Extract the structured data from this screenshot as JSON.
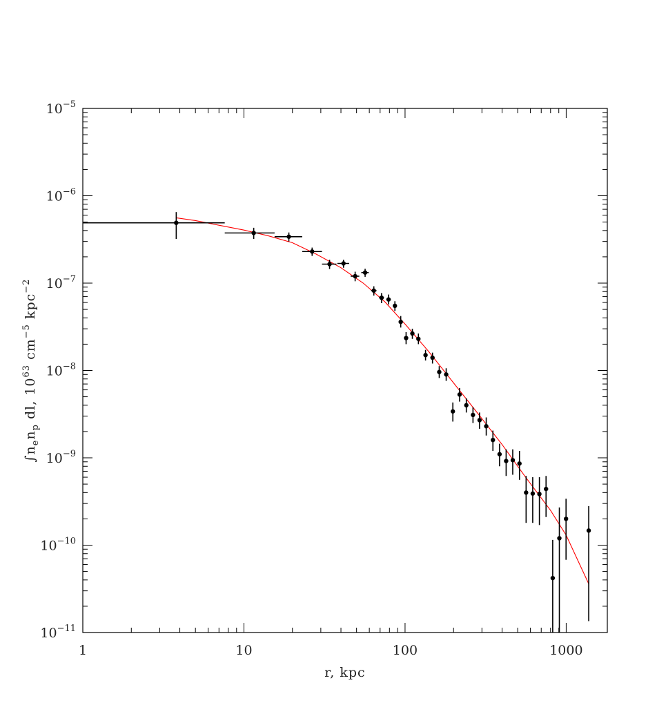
{
  "chart_data": {
    "type": "scatter",
    "title": "",
    "xlabel": "r, kpc",
    "ylabel": {
      "prefix": "∫n",
      "sub1": "e",
      "mid": "n",
      "sub2": "p",
      "rest1": " dl, 10",
      "exp1": "63",
      "rest2": " cm",
      "exp2": "−5",
      "rest3": " kpc",
      "exp3": "−2"
    },
    "x_scale": "log",
    "y_scale": "log",
    "xlim": [
      1,
      1800
    ],
    "ylim": [
      1e-11,
      1e-05
    ],
    "x_ticks": [
      {
        "value": 1,
        "label": "1"
      },
      {
        "value": 10,
        "label": "10"
      },
      {
        "value": 100,
        "label": "100"
      },
      {
        "value": 1000,
        "label": "1000"
      }
    ],
    "y_ticks": [
      {
        "value": 1e-05,
        "base": "10",
        "exp": "−5"
      },
      {
        "value": 1e-06,
        "base": "10",
        "exp": "−6"
      },
      {
        "value": 1e-07,
        "base": "10",
        "exp": "−7"
      },
      {
        "value": 1e-08,
        "base": "10",
        "exp": "−8"
      },
      {
        "value": 1e-09,
        "base": "10",
        "exp": "−9"
      },
      {
        "value": 1e-10,
        "base": "10",
        "exp": "−10"
      },
      {
        "value": 1e-11,
        "base": "10",
        "exp": "−11"
      }
    ],
    "grid": false,
    "series": [
      {
        "kind": "data-points",
        "color": "#000000",
        "points": [
          {
            "x": 3.8,
            "xlo": 1.0,
            "xhi": 7.6,
            "y": 4.9e-07,
            "ylo": 3.2e-07,
            "yhi": 6.5e-07
          },
          {
            "x": 11.5,
            "xlo": 7.6,
            "xhi": 15.5,
            "y": 3.75e-07,
            "ylo": 3.2e-07,
            "yhi": 4.3e-07
          },
          {
            "x": 19.0,
            "xlo": 15.5,
            "xhi": 23.0,
            "y": 3.4e-07,
            "ylo": 3e-07,
            "yhi": 3.8e-07
          },
          {
            "x": 26.5,
            "xlo": 23.0,
            "xhi": 30.5,
            "y": 2.3e-07,
            "ylo": 2.05e-07,
            "yhi": 2.55e-07
          },
          {
            "x": 34.0,
            "xlo": 30.5,
            "xhi": 37.5,
            "y": 1.65e-07,
            "ylo": 1.45e-07,
            "yhi": 1.85e-07
          },
          {
            "x": 41.5,
            "xlo": 38.0,
            "xhi": 45.0,
            "y": 1.68e-07,
            "ylo": 1.5e-07,
            "yhi": 1.85e-07
          },
          {
            "x": 49.0,
            "xlo": 46.0,
            "xhi": 52.0,
            "y": 1.2e-07,
            "ylo": 1.05e-07,
            "yhi": 1.35e-07
          },
          {
            "x": 56.5,
            "xlo": 53.5,
            "xhi": 59.5,
            "y": 1.32e-07,
            "ylo": 1.18e-07,
            "yhi": 1.46e-07
          },
          {
            "x": 64.0,
            "xlo": 61.5,
            "xhi": 66.5,
            "y": 8.2e-08,
            "ylo": 7.2e-08,
            "yhi": 9.2e-08
          },
          {
            "x": 71.5,
            "xlo": 69.0,
            "xhi": 74.0,
            "y": 6.8e-08,
            "ylo": 5.9e-08,
            "yhi": 7.7e-08
          },
          {
            "x": 79.0,
            "xlo": 76.5,
            "xhi": 81.5,
            "y": 6.5e-08,
            "ylo": 5.7e-08,
            "yhi": 7.4e-08
          },
          {
            "x": 86.5,
            "xlo": 84.5,
            "xhi": 88.5,
            "y": 5.5e-08,
            "ylo": 4.8e-08,
            "yhi": 6.2e-08
          },
          {
            "x": 94.0,
            "xlo": 92.0,
            "xhi": 96.0,
            "y": 3.6e-08,
            "ylo": 3.1e-08,
            "yhi": 4.2e-08
          },
          {
            "x": 101.5,
            "xlo": 99.5,
            "xhi": 103.5,
            "y": 2.35e-08,
            "ylo": 2e-08,
            "yhi": 2.75e-08
          },
          {
            "x": 111.0,
            "xlo": 108.5,
            "xhi": 113.5,
            "y": 2.65e-08,
            "ylo": 2.3e-08,
            "yhi": 3e-08
          },
          {
            "x": 121.0,
            "xlo": 118.5,
            "xhi": 123.5,
            "y": 2.3e-08,
            "ylo": 2e-08,
            "yhi": 2.65e-08
          },
          {
            "x": 134.0,
            "xlo": 131.5,
            "xhi": 136.5,
            "y": 1.5e-08,
            "ylo": 1.3e-08,
            "yhi": 1.72e-08
          },
          {
            "x": 148.0,
            "xlo": 145.0,
            "xhi": 151.0,
            "y": 1.4e-08,
            "ylo": 1.2e-08,
            "yhi": 1.6e-08
          },
          {
            "x": 163.0,
            "xlo": 160.0,
            "xhi": 166.0,
            "y": 9.6e-09,
            "ylo": 8.2e-09,
            "yhi": 1.12e-08
          },
          {
            "x": 180.0,
            "xlo": 177.0,
            "xhi": 183.0,
            "y": 9e-09,
            "ylo": 7.6e-09,
            "yhi": 1.06e-08
          },
          {
            "x": 198.0,
            "xlo": 195.0,
            "xhi": 201.0,
            "y": 3.4e-09,
            "ylo": 2.6e-09,
            "yhi": 4.3e-09
          },
          {
            "x": 218.0,
            "xlo": 214.0,
            "xhi": 222.0,
            "y": 5.3e-09,
            "ylo": 4.4e-09,
            "yhi": 6.3e-09
          },
          {
            "x": 240.0,
            "xlo": 236.0,
            "xhi": 244.0,
            "y": 4e-09,
            "ylo": 3.3e-09,
            "yhi": 4.8e-09
          },
          {
            "x": 264.0,
            "xlo": 260.0,
            "xhi": 268.0,
            "y": 3.1e-09,
            "ylo": 2.5e-09,
            "yhi": 3.8e-09
          },
          {
            "x": 290.0,
            "xlo": 286.0,
            "xhi": 294.0,
            "y": 2.7e-09,
            "ylo": 2.15e-09,
            "yhi": 3.3e-09
          },
          {
            "x": 319.0,
            "xlo": 315.0,
            "xhi": 323.0,
            "y": 2.3e-09,
            "ylo": 1.8e-09,
            "yhi": 2.9e-09
          },
          {
            "x": 351.0,
            "xlo": 347.0,
            "xhi": 355.0,
            "y": 1.6e-09,
            "ylo": 1.2e-09,
            "yhi": 2.05e-09
          },
          {
            "x": 386.0,
            "xlo": 382.0,
            "xhi": 390.0,
            "y": 1.1e-09,
            "ylo": 8e-10,
            "yhi": 1.45e-09
          },
          {
            "x": 424.0,
            "xlo": 420.0,
            "xhi": 428.0,
            "y": 9.2e-10,
            "ylo": 6.2e-10,
            "yhi": 1.25e-09
          },
          {
            "x": 466.0,
            "xlo": 462.0,
            "xhi": 470.0,
            "y": 9.4e-10,
            "ylo": 6.4e-10,
            "yhi": 1.25e-09
          },
          {
            "x": 513.0,
            "xlo": 509.0,
            "xhi": 517.0,
            "y": 8.6e-10,
            "ylo": 5.6e-10,
            "yhi": 1.2e-09
          },
          {
            "x": 564.0,
            "xlo": 560.0,
            "xhi": 568.0,
            "y": 4e-10,
            "ylo": 1.8e-10,
            "yhi": 6.2e-10
          },
          {
            "x": 620.0,
            "xlo": 616.0,
            "xhi": 624.0,
            "y": 3.9e-10,
            "ylo": 1.8e-10,
            "yhi": 6e-10
          },
          {
            "x": 682.0,
            "xlo": 678.0,
            "xhi": 686.0,
            "y": 3.85e-10,
            "ylo": 1.7e-10,
            "yhi": 6e-10
          },
          {
            "x": 750.0,
            "xlo": 746.0,
            "xhi": 754.0,
            "y": 4.4e-10,
            "ylo": 2.1e-10,
            "yhi": 6.2e-10
          },
          {
            "x": 825.0,
            "xlo": 821.0,
            "xhi": 829.0,
            "y": 4.2e-11,
            "ylo": 1e-11,
            "yhi": 1.15e-10
          },
          {
            "x": 907.0,
            "xlo": 903.0,
            "xhi": 911.0,
            "y": 1.2e-10,
            "ylo": 1e-11,
            "yhi": 2.7e-10
          },
          {
            "x": 998.0,
            "xlo": 994.0,
            "xhi": 1002.0,
            "y": 2e-10,
            "ylo": 6.8e-11,
            "yhi": 3.4e-10
          },
          {
            "x": 1380.0,
            "xlo": 1376.0,
            "xhi": 1384.0,
            "y": 1.47e-10,
            "ylo": 1.35e-11,
            "yhi": 2.8e-10
          }
        ]
      },
      {
        "kind": "model-curve",
        "color": "#ff0000",
        "x": [
          3.8,
          5,
          7,
          10,
          14,
          20,
          28,
          40,
          55,
          75,
          100,
          140,
          200,
          280,
          400,
          560,
          800,
          1000,
          1380
        ],
        "y": [
          5.6e-07,
          5.2e-07,
          4.6e-07,
          4.05e-07,
          3.5e-07,
          2.9e-07,
          2.15e-07,
          1.5e-07,
          1e-07,
          6.1e-08,
          3.4e-08,
          1.65e-08,
          7.2e-09,
          3.3e-09,
          1.42e-09,
          6e-10,
          2.5e-10,
          1.3e-10,
          3.6e-11
        ]
      }
    ]
  }
}
